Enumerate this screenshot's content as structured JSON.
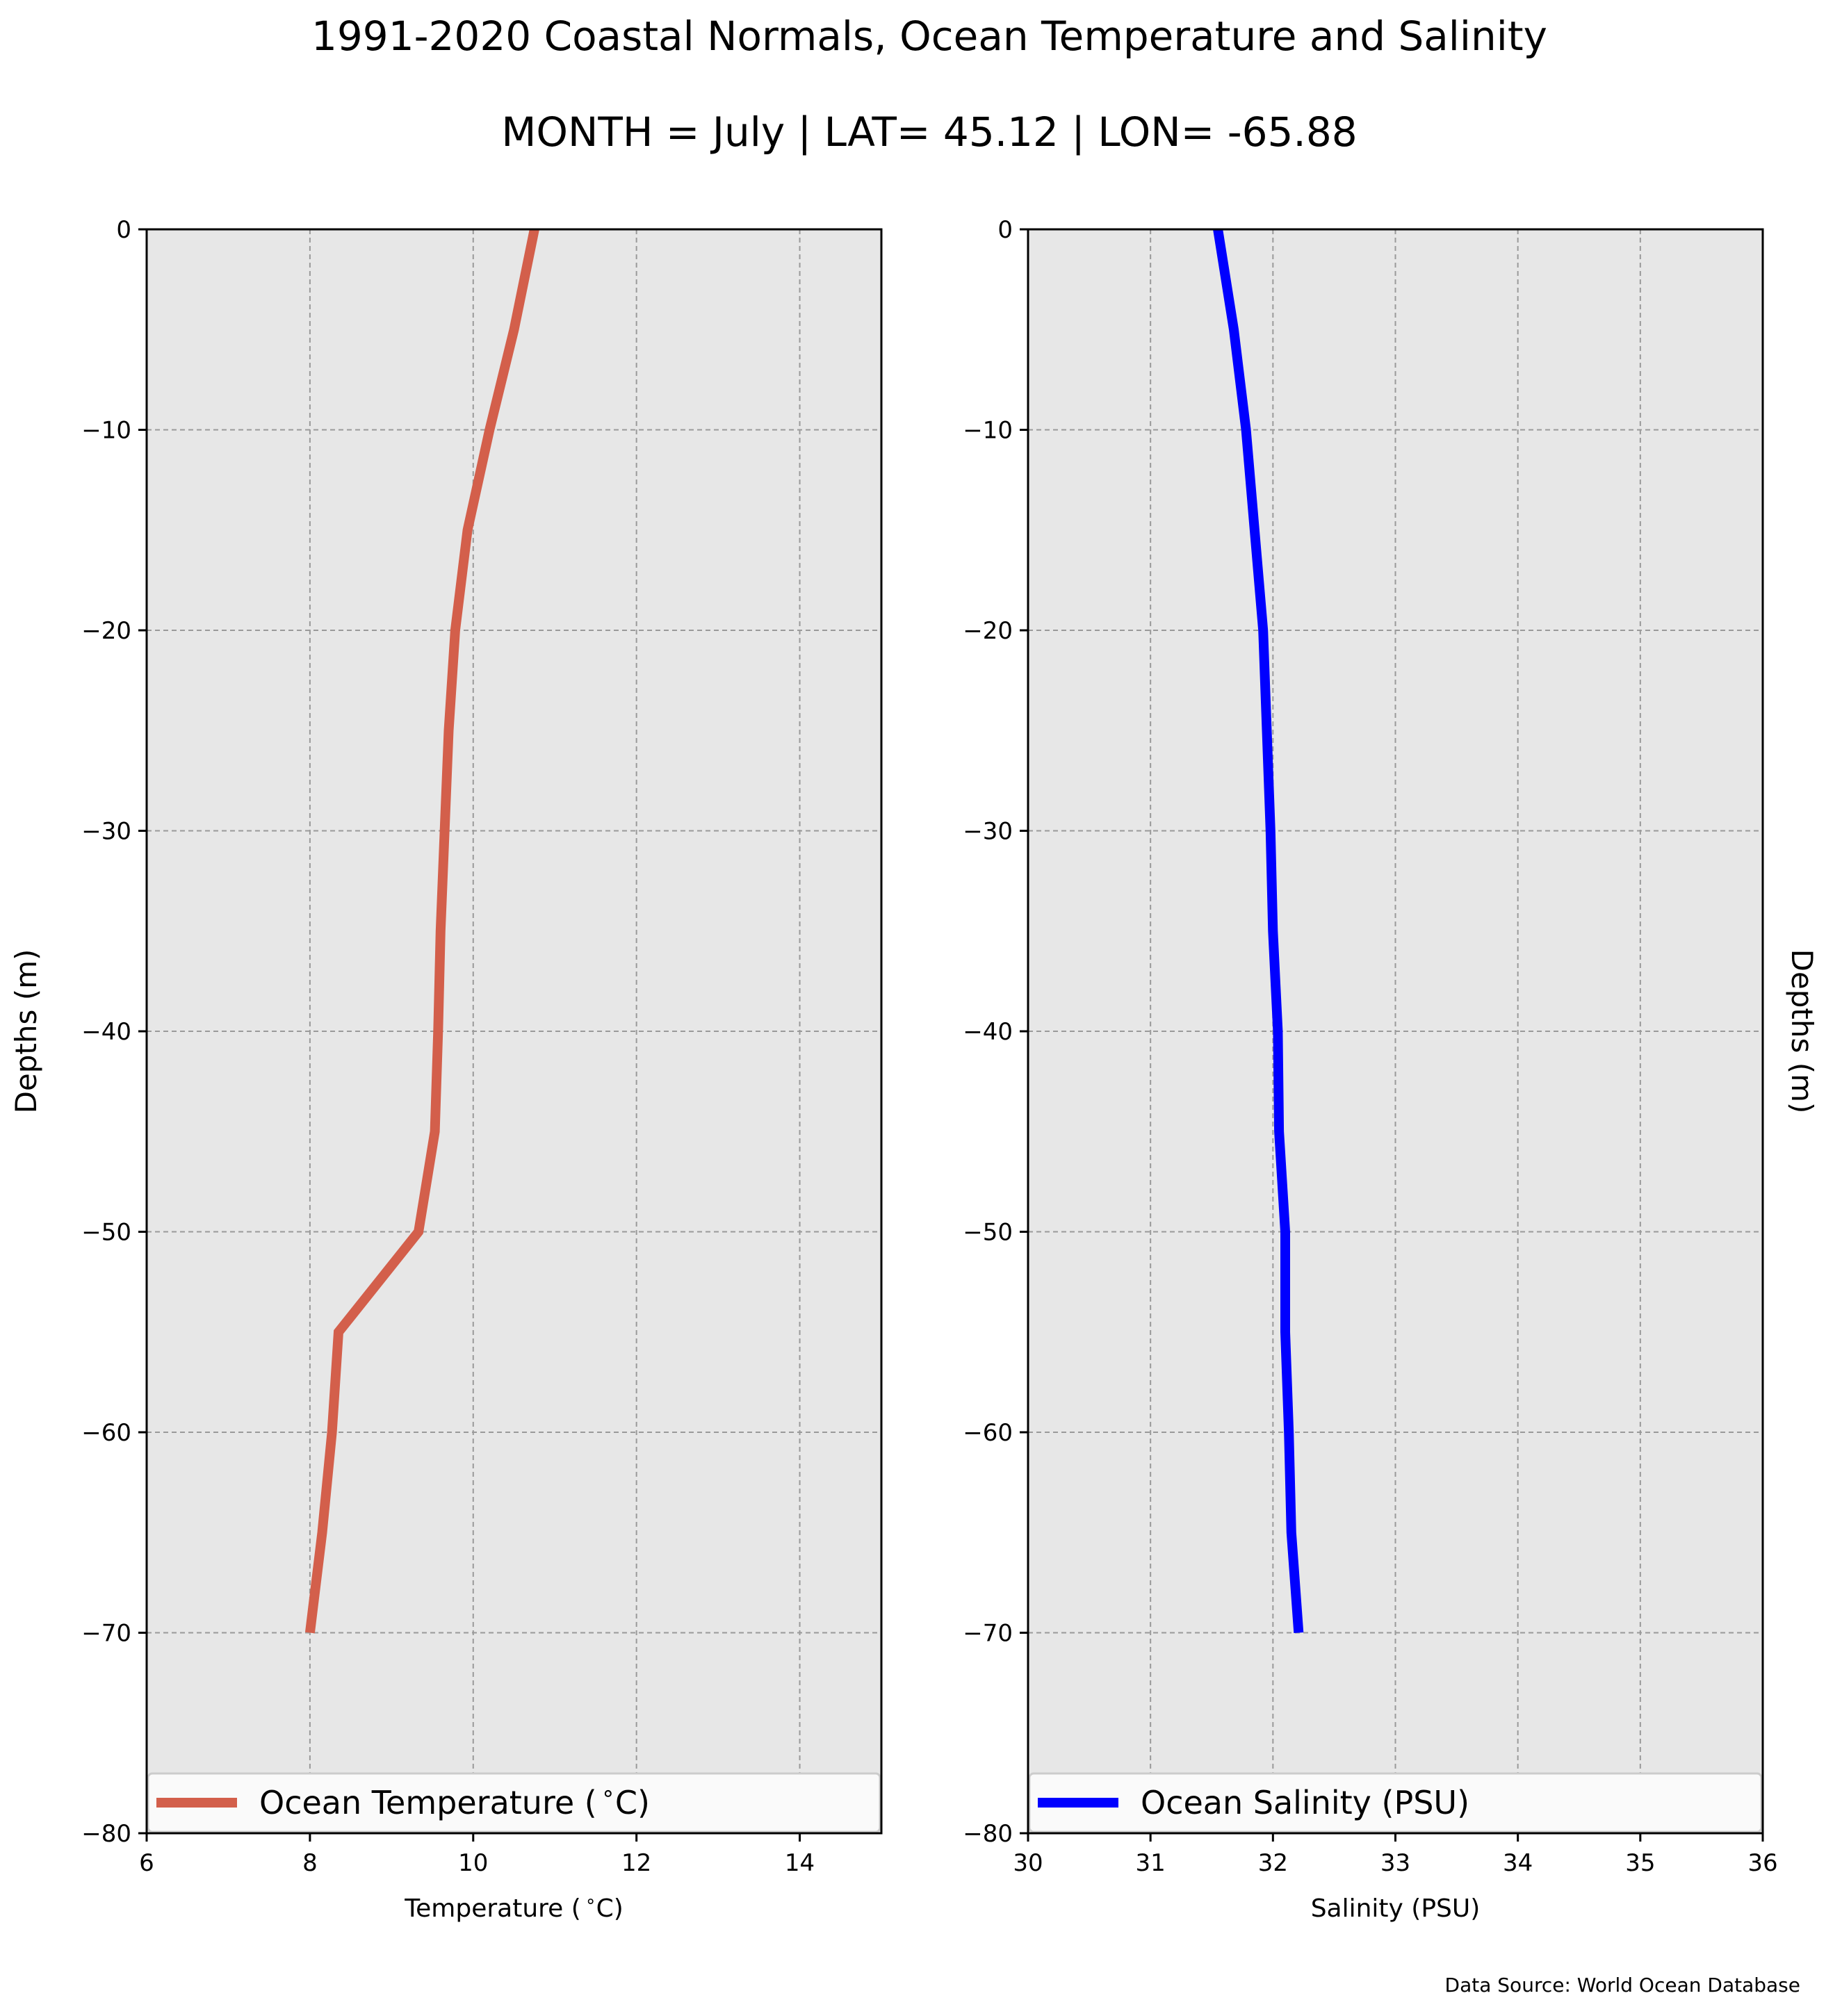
{
  "figure": {
    "title_line1": "1991-2020 Coastal Normals, Ocean Temperature and Salinity",
    "title_line2": "MONTH = July | LAT= 45.12 | LON= -65.88",
    "source_note": "Data Source: World Ocean Database"
  },
  "chart_data": [
    {
      "type": "line",
      "title": "",
      "xlabel": "Temperature ($^\\circ$C)",
      "ylabel": "Depths (m)",
      "xlim": [
        6,
        15
      ],
      "ylim": [
        -80,
        0
      ],
      "xticks": [
        6,
        8,
        10,
        12,
        14
      ],
      "yticks": [
        0,
        -10,
        -20,
        -30,
        -40,
        -50,
        -60,
        -70,
        -80
      ],
      "grid": true,
      "legend_position": "lower-center",
      "series": [
        {
          "name": "Ocean Temperature ($^\\circ$C)",
          "color": "#d35f4b",
          "x": [
            10.75,
            10.5,
            10.2,
            9.93,
            9.78,
            9.7,
            9.6,
            9.57,
            9.53,
            9.33,
            8.35,
            8.27,
            8.15,
            8.0
          ],
          "y": [
            0,
            -5,
            -10,
            -15,
            -20,
            -25,
            -35,
            -40,
            -45,
            -50,
            -55,
            -60,
            -65,
            -70
          ]
        }
      ]
    },
    {
      "type": "line",
      "title": "",
      "xlabel": "Salinity (PSU)",
      "ylabel": "Depths (m)",
      "xlim": [
        30,
        36
      ],
      "ylim": [
        -80,
        0
      ],
      "xticks": [
        30,
        31,
        32,
        33,
        34,
        35,
        36
      ],
      "yticks": [
        0,
        -10,
        -20,
        -30,
        -40,
        -50,
        -60,
        -70,
        -80
      ],
      "grid": true,
      "legend_position": "lower-center",
      "series": [
        {
          "name": "Ocean Salinity (PSU)",
          "color": "#0000ff",
          "x": [
            31.55,
            31.68,
            31.78,
            31.85,
            31.92,
            31.95,
            31.98,
            32.0,
            32.04,
            32.05,
            32.1,
            32.1,
            32.13,
            32.15,
            32.21
          ],
          "y": [
            0,
            -5,
            -10,
            -15,
            -20,
            -25,
            -30,
            -35,
            -40,
            -45,
            -50,
            -55,
            -60,
            -65,
            -70
          ]
        }
      ]
    }
  ]
}
